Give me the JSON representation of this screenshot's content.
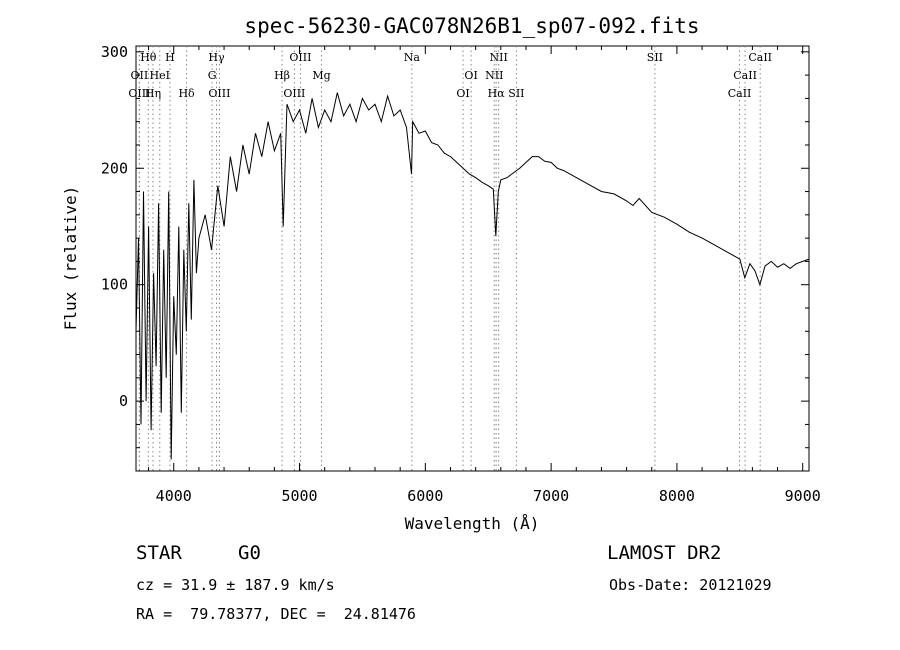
{
  "chart_data": {
    "type": "line",
    "title": "spec-56230-GAC078N26B1_sp07-092.fits",
    "xlabel": "Wavelength (Å)",
    "ylabel": "Flux (relative)",
    "xlim": [
      3700,
      9050
    ],
    "ylim": [
      -60,
      305
    ],
    "xticks": [
      4000,
      5000,
      6000,
      7000,
      8000,
      9000
    ],
    "yticks": [
      0,
      100,
      200,
      300
    ],
    "grid": false,
    "line_color": "#000000",
    "marker_color": "#888888",
    "series": [
      {
        "x": [
          3700,
          3720,
          3740,
          3760,
          3780,
          3800,
          3820,
          3840,
          3860,
          3880,
          3900,
          3920,
          3940,
          3960,
          3980,
          4000,
          4020,
          4040,
          4060,
          4080,
          4100,
          4120,
          4140,
          4160,
          4180,
          4200,
          4250,
          4300,
          4350,
          4400,
          4450,
          4500,
          4550,
          4600,
          4650,
          4700,
          4750,
          4800,
          4850,
          4870,
          4900,
          4950,
          5000,
          5050,
          5100,
          5150,
          5200,
          5250,
          5300,
          5350,
          5400,
          5450,
          5500,
          5550,
          5600,
          5650,
          5700,
          5750,
          5800,
          5850,
          5890,
          5900,
          5950,
          6000,
          6050,
          6100,
          6150,
          6200,
          6250,
          6300,
          6350,
          6400,
          6450,
          6500,
          6540,
          6560,
          6580,
          6600,
          6650,
          6700,
          6750,
          6800,
          6850,
          6900,
          6950,
          7000,
          7050,
          7100,
          7200,
          7300,
          7400,
          7500,
          7600,
          7650,
          7700,
          7800,
          7900,
          8000,
          8100,
          8200,
          8300,
          8400,
          8500,
          8540,
          8580,
          8620,
          8660,
          8700,
          8750,
          8800,
          8850,
          8900,
          8950,
          9000,
          9050
        ],
        "y": [
          60,
          140,
          -20,
          180,
          0,
          150,
          -25,
          110,
          30,
          170,
          -10,
          130,
          20,
          180,
          -50,
          90,
          40,
          150,
          -10,
          130,
          60,
          170,
          70,
          190,
          110,
          140,
          160,
          130,
          185,
          150,
          210,
          180,
          220,
          195,
          230,
          210,
          240,
          215,
          230,
          150,
          255,
          240,
          250,
          230,
          260,
          235,
          250,
          240,
          265,
          245,
          255,
          240,
          260,
          250,
          255,
          240,
          262,
          245,
          250,
          235,
          195,
          240,
          230,
          232,
          222,
          220,
          213,
          210,
          205,
          200,
          195,
          192,
          188,
          185,
          182,
          142,
          180,
          190,
          192,
          196,
          200,
          205,
          210,
          210,
          206,
          205,
          200,
          198,
          192,
          186,
          180,
          178,
          172,
          168,
          174,
          162,
          158,
          152,
          145,
          140,
          134,
          128,
          122,
          106,
          118,
          112,
          100,
          116,
          120,
          115,
          118,
          114,
          118,
          120,
          122
        ]
      }
    ],
    "line_marks": [
      {
        "label": "Hθ",
        "x": 3798,
        "row": 1
      },
      {
        "label": "OII",
        "x": 3727,
        "row": 2
      },
      {
        "label": "OIII",
        "x": 3727,
        "row": 3
      },
      {
        "label": "H",
        "x": 3970,
        "row": 1
      },
      {
        "label": "HeI",
        "x": 3889,
        "row": 2
      },
      {
        "label": "Hη",
        "x": 3835,
        "row": 3
      },
      {
        "label": "Hγ",
        "x": 4340,
        "row": 1
      },
      {
        "label": "G",
        "x": 4305,
        "row": 2
      },
      {
        "label": "Hδ",
        "x": 4102,
        "row": 3
      },
      {
        "label": "OIII",
        "x": 4363,
        "row": 3
      },
      {
        "label": "OIII",
        "x": 5007,
        "row": 1
      },
      {
        "label": "Hβ",
        "x": 4861,
        "row": 2
      },
      {
        "label": "Mg",
        "x": 5175,
        "row": 2
      },
      {
        "label": "OIII",
        "x": 4959,
        "row": 3
      },
      {
        "label": "Na",
        "x": 5893,
        "row": 1
      },
      {
        "label": "NII",
        "x": 6583,
        "row": 1
      },
      {
        "label": "OI",
        "x": 6364,
        "row": 2
      },
      {
        "label": "NII",
        "x": 6548,
        "row": 2
      },
      {
        "label": "OI",
        "x": 6300,
        "row": 3
      },
      {
        "label": "Hα",
        "x": 6563,
        "row": 3
      },
      {
        "label": "SII",
        "x": 6724,
        "row": 3
      },
      {
        "label": "SII",
        "x": 7825,
        "row": 1
      },
      {
        "label": "CaII",
        "x": 8662,
        "row": 1
      },
      {
        "label": "CaII",
        "x": 8542,
        "row": 2
      },
      {
        "label": "CaII",
        "x": 8498,
        "row": 3
      }
    ]
  },
  "info": {
    "object_class": "STAR",
    "subclass": "G0",
    "survey": "LAMOST DR2",
    "cz": "cz = 31.9 ± 187.9 km/s",
    "obs_date": "Obs-Date: 20121029",
    "coords": "RA =  79.78377, DEC =  24.81476"
  }
}
